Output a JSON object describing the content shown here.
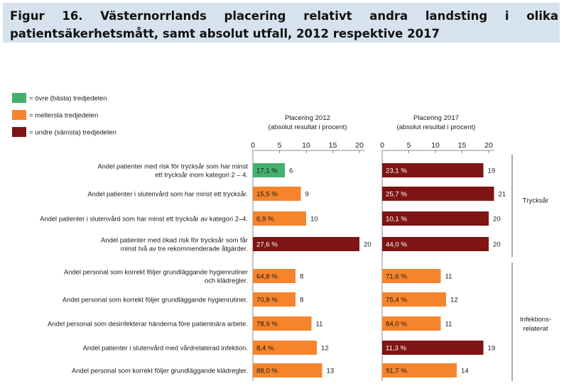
{
  "title": "Figur 16. Västernorrlands placering relativt andra landsting i olika patientsäkerhetsmått, samt absolut utfall, 2012 respektive 2017",
  "colors": {
    "green": "#45b06e",
    "orange": "#f5842c",
    "red": "#7f1414"
  },
  "chart_data": {
    "type": "bar",
    "legend": [
      {
        "label": "= övre (bästa) tredjedelen",
        "color": "green"
      },
      {
        "label": "= mellersta tredjedelen",
        "color": "orange"
      },
      {
        "label": "= undre (sämsta) tredjedelen",
        "color": "red"
      }
    ],
    "legend_position": "top-left",
    "panels": [
      {
        "header": [
          "Placering 2012",
          "(absolut resultat i procent)"
        ],
        "ticks": [
          "0",
          "5",
          "10",
          "15",
          "20"
        ],
        "xlim": [
          0,
          21
        ]
      },
      {
        "header": [
          "Placering 2017",
          "(absolut resultat i procent)"
        ],
        "ticks": [
          "0",
          "5",
          "10",
          "15",
          "20"
        ],
        "xlim": [
          0,
          21
        ]
      }
    ],
    "groups": [
      {
        "lines": [
          "Trycksår"
        ]
      },
      {
        "lines": [
          "Infektions-",
          "relaterat"
        ]
      }
    ],
    "rows": [
      {
        "label": [
          "Andel patienter med risk för trycksår som har minst",
          "ett trycksår inom kategori 2 – 4."
        ],
        "group": 0,
        "y2012": {
          "rank": 6,
          "label": "17,1 %",
          "color": "green"
        },
        "y2017": {
          "rank": 19,
          "label": "23,1 %",
          "color": "red"
        }
      },
      {
        "label": [
          "Andel patienter i slutenvård som har minst ett trycksår."
        ],
        "group": 0,
        "y2012": {
          "rank": 9,
          "label": "15,5 %",
          "color": "orange"
        },
        "y2017": {
          "rank": 21,
          "label": "25,7 %",
          "color": "red"
        }
      },
      {
        "label": [
          "Andel patienter i slutenvård som har  minst ett trycksår av kategori 2–4."
        ],
        "group": 0,
        "y2012": {
          "rank": 10,
          "label": "6,9 %",
          "color": "orange"
        },
        "y2017": {
          "rank": 20,
          "label": "10,1 %",
          "color": "red"
        }
      },
      {
        "label": [
          "Andel patienter med ökad risk för trycksår som får",
          "minst två av tre rekommenderade åtgärder."
        ],
        "group": 0,
        "y2012": {
          "rank": 20,
          "label": "27,6 %",
          "color": "red"
        },
        "y2017": {
          "rank": 20,
          "label": "44,0 %",
          "color": "red"
        }
      },
      {
        "label": [
          "Andel personal som korrekt följer grundläggande hygienrutiner",
          "och klädregler."
        ],
        "group": 1,
        "y2012": {
          "rank": 8,
          "label": "64,8 %",
          "color": "orange"
        },
        "y2017": {
          "rank": 11,
          "label": "71,6 %",
          "color": "orange"
        }
      },
      {
        "label": [
          "Andel personal som korrekt följer grundläggande hygienrutiner."
        ],
        "group": 1,
        "y2012": {
          "rank": 8,
          "label": "70,8 %",
          "color": "orange"
        },
        "y2017": {
          "rank": 12,
          "label": "75,4 %",
          "color": "orange"
        }
      },
      {
        "label": [
          "Andel personal som desinfekterar händerna före patientnära arbete."
        ],
        "group": 1,
        "y2012": {
          "rank": 11,
          "label": "78,9 %",
          "color": "orange"
        },
        "y2017": {
          "rank": 11,
          "label": "84,0 %",
          "color": "orange"
        }
      },
      {
        "label": [
          "Andel patienter i slutenvård med vårdrelaterad infektion."
        ],
        "group": 1,
        "y2012": {
          "rank": 12,
          "label": "8,4 %",
          "color": "orange"
        },
        "y2017": {
          "rank": 19,
          "label": "11,3 %",
          "color": "red"
        }
      },
      {
        "label": [
          "Andel personal som korrekt följer grundläggande klädregler."
        ],
        "group": 1,
        "y2012": {
          "rank": 13,
          "label": "88,0 %",
          "color": "orange"
        },
        "y2017": {
          "rank": 14,
          "label": "91,7 %",
          "color": "orange"
        }
      }
    ]
  }
}
